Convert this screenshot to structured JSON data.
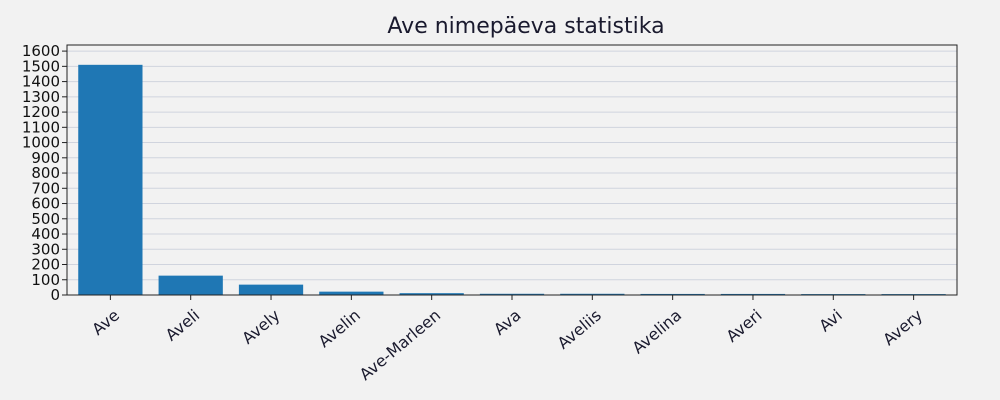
{
  "chart_data": {
    "type": "bar",
    "title": "Ave nimepäeva statistika",
    "xlabel": "",
    "ylabel": "",
    "categories": [
      "Ave",
      "Aveli",
      "Avely",
      "Avelin",
      "Ave-Marleen",
      "Ava",
      "Aveliis",
      "Avelina",
      "Averi",
      "Avi",
      "Avery"
    ],
    "values": [
      1510,
      127,
      68,
      22,
      12,
      8,
      8,
      7,
      7,
      6,
      6
    ],
    "ylim": [
      0,
      1640
    ],
    "yticks": [
      0,
      100,
      200,
      300,
      400,
      500,
      600,
      700,
      800,
      900,
      1000,
      1100,
      1200,
      1300,
      1400,
      1500,
      1600
    ],
    "grid": "horizontal",
    "bar_color": "#1f77b4",
    "background": "#f2f2f2"
  }
}
